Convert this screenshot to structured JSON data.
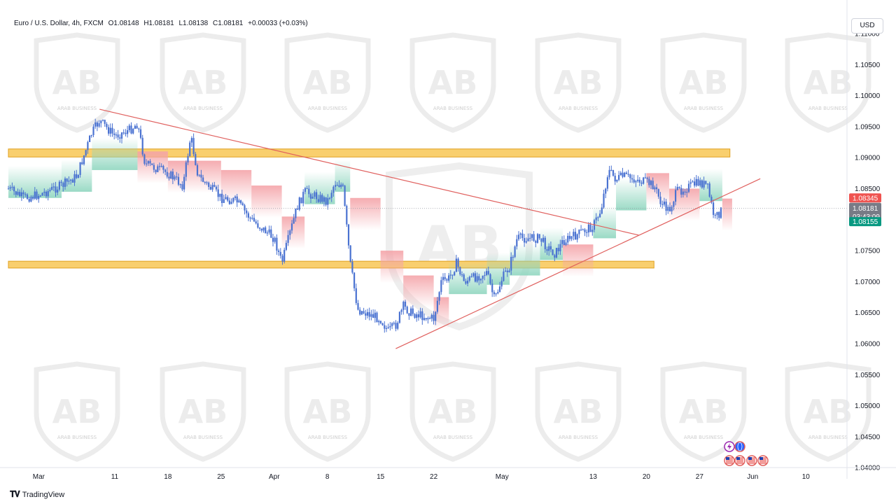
{
  "header": {
    "symbol": "Euro / U.S. Dollar, 4h, FXCM",
    "open": "O1.08148",
    "high": "H1.08181",
    "low": "L1.08138",
    "close": "C1.08181",
    "change": "+0.00033 (+0.03%)"
  },
  "currency_button": "USD",
  "brand": "TradingView",
  "watermark": {
    "text": "ARAB BUSINESS"
  },
  "price_labels": {
    "red_level": "1.08345",
    "current_price": "1.08181",
    "countdown": "03:43:09",
    "green_level": "1.08155"
  },
  "colors": {
    "candle": "#4a72d1",
    "zone_fill": "#f9cf6e",
    "zone_stroke": "#e0a020",
    "trendline": "#e0605e",
    "cloud_red": "#f4a3a8",
    "cloud_green": "#8fd6bf",
    "label_red": "#ef5350",
    "label_green": "#089981",
    "label_grey": "#787b86"
  },
  "event_icons": [
    "flash-icon",
    "globe-icon",
    "us-flag-icon",
    "us-flag-icon",
    "us-flag-icon",
    "us-flag-icon"
  ],
  "chart_data": {
    "type": "candlestick",
    "title": "Euro / U.S. Dollar, 4h, FXCM",
    "x_tick_labels": [
      "Mar",
      "11",
      "18",
      "25",
      "Apr",
      "8",
      "15",
      "22",
      "May",
      "13",
      "20",
      "27",
      "Jun",
      "10"
    ],
    "y_tick_labels": [
      "1.11000",
      "1.10500",
      "1.10000",
      "1.09500",
      "1.09000",
      "1.08500",
      "1.08000",
      "1.07500",
      "1.07000",
      "1.06500",
      "1.06000",
      "1.05500",
      "1.05000",
      "1.04500",
      "1.04000"
    ],
    "ylim": [
      1.04,
      1.11
    ],
    "price_path": [
      {
        "date": "2024-02-26",
        "p": 1.085
      },
      {
        "date": "2024-02-28",
        "p": 1.0835
      },
      {
        "date": "2024-03-01",
        "p": 1.084
      },
      {
        "date": "2024-03-04",
        "p": 1.0855
      },
      {
        "date": "2024-03-06",
        "p": 1.087
      },
      {
        "date": "2024-03-08",
        "p": 1.094
      },
      {
        "date": "2024-03-09",
        "p": 1.096
      },
      {
        "date": "2024-03-11",
        "p": 1.0935
      },
      {
        "date": "2024-03-13",
        "p": 1.0945
      },
      {
        "date": "2024-03-14",
        "p": 1.0955
      },
      {
        "date": "2024-03-15",
        "p": 1.089
      },
      {
        "date": "2024-03-18",
        "p": 1.0875
      },
      {
        "date": "2024-03-19",
        "p": 1.0865
      },
      {
        "date": "2024-03-20",
        "p": 1.0855
      },
      {
        "date": "2024-03-21",
        "p": 1.0935
      },
      {
        "date": "2024-03-22",
        "p": 1.087
      },
      {
        "date": "2024-03-25",
        "p": 1.0835
      },
      {
        "date": "2024-03-27",
        "p": 1.083
      },
      {
        "date": "2024-03-29",
        "p": 1.08
      },
      {
        "date": "2024-04-01",
        "p": 1.077
      },
      {
        "date": "2024-04-02",
        "p": 1.073
      },
      {
        "date": "2024-04-04",
        "p": 1.082
      },
      {
        "date": "2024-04-05",
        "p": 1.0845
      },
      {
        "date": "2024-04-08",
        "p": 1.083
      },
      {
        "date": "2024-04-09",
        "p": 1.086
      },
      {
        "date": "2024-04-10",
        "p": 1.0855
      },
      {
        "date": "2024-04-11",
        "p": 1.073
      },
      {
        "date": "2024-04-12",
        "p": 1.0655
      },
      {
        "date": "2024-04-15",
        "p": 1.064
      },
      {
        "date": "2024-04-16",
        "p": 1.062
      },
      {
        "date": "2024-04-17",
        "p": 1.063
      },
      {
        "date": "2024-04-18",
        "p": 1.066
      },
      {
        "date": "2024-04-19",
        "p": 1.065
      },
      {
        "date": "2024-04-22",
        "p": 1.064
      },
      {
        "date": "2024-04-23",
        "p": 1.07
      },
      {
        "date": "2024-04-24",
        "p": 1.0705
      },
      {
        "date": "2024-04-25",
        "p": 1.073
      },
      {
        "date": "2024-04-26",
        "p": 1.07
      },
      {
        "date": "2024-04-29",
        "p": 1.0715
      },
      {
        "date": "2024-04-30",
        "p": 1.067
      },
      {
        "date": "2024-05-01",
        "p": 1.0705
      },
      {
        "date": "2024-05-02",
        "p": 1.0725
      },
      {
        "date": "2024-05-03",
        "p": 1.077
      },
      {
        "date": "2024-05-06",
        "p": 1.077
      },
      {
        "date": "2024-05-07",
        "p": 1.0755
      },
      {
        "date": "2024-05-08",
        "p": 1.0745
      },
      {
        "date": "2024-05-09",
        "p": 1.0765
      },
      {
        "date": "2024-05-10",
        "p": 1.077
      },
      {
        "date": "2024-05-13",
        "p": 1.079
      },
      {
        "date": "2024-05-14",
        "p": 1.0815
      },
      {
        "date": "2024-05-15",
        "p": 1.088
      },
      {
        "date": "2024-05-16",
        "p": 1.0865
      },
      {
        "date": "2024-05-17",
        "p": 1.087
      },
      {
        "date": "2024-05-20",
        "p": 1.086
      },
      {
        "date": "2024-05-21",
        "p": 1.0855
      },
      {
        "date": "2024-05-22",
        "p": 1.0825
      },
      {
        "date": "2024-05-23",
        "p": 1.0815
      },
      {
        "date": "2024-05-24",
        "p": 1.0845
      },
      {
        "date": "2024-05-27",
        "p": 1.086
      },
      {
        "date": "2024-05-28",
        "p": 1.0855
      },
      {
        "date": "2024-05-29",
        "p": 1.08
      },
      {
        "date": "2024-05-30",
        "p": 1.0818
      }
    ],
    "cloud_overlay": [
      {
        "date": "2024-02-26",
        "v": 1.0835,
        "color": "green"
      },
      {
        "date": "2024-03-04",
        "v": 1.0845,
        "color": "green"
      },
      {
        "date": "2024-03-08",
        "v": 1.088,
        "color": "green"
      },
      {
        "date": "2024-03-14",
        "v": 1.091,
        "color": "red"
      },
      {
        "date": "2024-03-18",
        "v": 1.0895,
        "color": "red"
      },
      {
        "date": "2024-03-25",
        "v": 1.088,
        "color": "red"
      },
      {
        "date": "2024-03-29",
        "v": 1.0855,
        "color": "red"
      },
      {
        "date": "2024-04-02",
        "v": 1.0805,
        "color": "red"
      },
      {
        "date": "2024-04-05",
        "v": 1.0825,
        "color": "green"
      },
      {
        "date": "2024-04-09",
        "v": 1.0845,
        "color": "green"
      },
      {
        "date": "2024-04-11",
        "v": 1.0835,
        "color": "red"
      },
      {
        "date": "2024-04-15",
        "v": 1.075,
        "color": "red"
      },
      {
        "date": "2024-04-18",
        "v": 1.071,
        "color": "red"
      },
      {
        "date": "2024-04-22",
        "v": 1.0675,
        "color": "red"
      },
      {
        "date": "2024-04-24",
        "v": 1.068,
        "color": "green"
      },
      {
        "date": "2024-04-29",
        "v": 1.0695,
        "color": "green"
      },
      {
        "date": "2024-05-02",
        "v": 1.071,
        "color": "green"
      },
      {
        "date": "2024-05-06",
        "v": 1.0735,
        "color": "green"
      },
      {
        "date": "2024-05-09",
        "v": 1.076,
        "color": "red"
      },
      {
        "date": "2024-05-13",
        "v": 1.077,
        "color": "green"
      },
      {
        "date": "2024-05-16",
        "v": 1.0815,
        "color": "green"
      },
      {
        "date": "2024-05-20",
        "v": 1.0875,
        "color": "red"
      },
      {
        "date": "2024-05-23",
        "v": 1.085,
        "color": "red"
      },
      {
        "date": "2024-05-27",
        "v": 1.083,
        "color": "green"
      },
      {
        "date": "2024-05-30",
        "v": 1.0834,
        "color": "red"
      }
    ],
    "resistance_zone": {
      "from": "2024-02-26",
      "to": "2024-05-31",
      "low": 1.0901,
      "high": 1.0914
    },
    "support_zone": {
      "from": "2024-02-26",
      "to": "2024-05-21",
      "low": 1.0722,
      "high": 1.0733
    },
    "trendlines": [
      {
        "name": "descending",
        "from": {
          "date": "2024-03-09",
          "price": 1.0978
        },
        "to": {
          "date": "2024-05-19",
          "price": 1.0775
        }
      },
      {
        "name": "ascending",
        "from": {
          "date": "2024-04-17",
          "price": 1.0592
        },
        "to": {
          "date": "2024-06-04",
          "price": 1.0866
        }
      }
    ],
    "last_price": 1.08181,
    "red_level": 1.08345,
    "green_level": 1.08155,
    "grid": false
  }
}
